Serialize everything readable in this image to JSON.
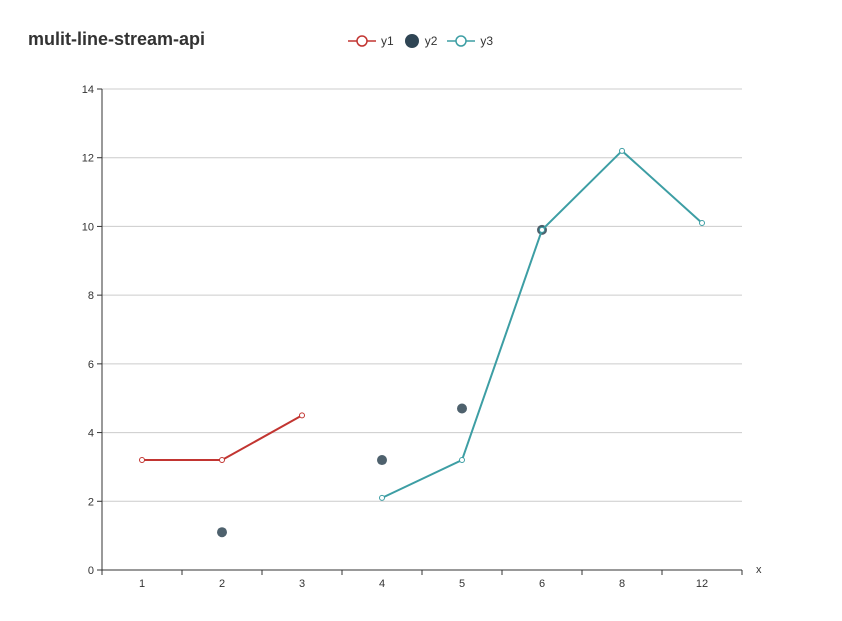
{
  "chart_data": {
    "type": "line",
    "title": "mulit-line-stream-api",
    "xlabel": "x",
    "ylabel": "",
    "categories": [
      "1",
      "2",
      "3",
      "4",
      "5",
      "6",
      "8",
      "12"
    ],
    "ylim": [
      0,
      14
    ],
    "yticks": [
      0,
      2,
      4,
      6,
      8,
      10,
      12,
      14
    ],
    "grid": true,
    "legend_position": "top-center",
    "series": [
      {
        "name": "y1",
        "kind": "line",
        "color": "#c23531",
        "values": [
          3.2,
          3.2,
          4.5,
          null,
          null,
          null,
          null,
          null
        ]
      },
      {
        "name": "y2",
        "kind": "scatter",
        "color": "#2f4554",
        "values": [
          null,
          1.1,
          null,
          3.2,
          4.7,
          9.9,
          null,
          null
        ]
      },
      {
        "name": "y3",
        "kind": "line",
        "color": "#3d9ea4",
        "values": [
          null,
          null,
          null,
          2.1,
          3.2,
          9.9,
          12.2,
          10.1
        ]
      }
    ]
  }
}
